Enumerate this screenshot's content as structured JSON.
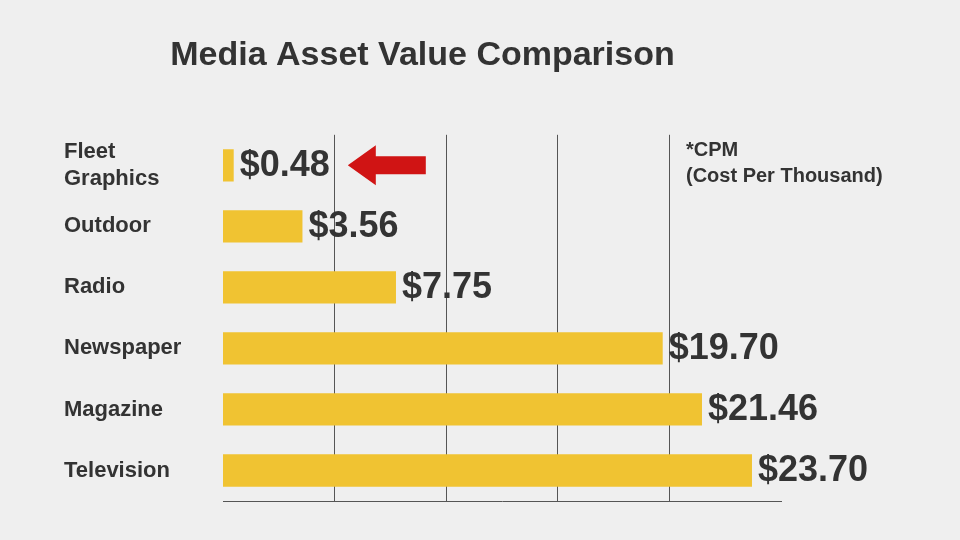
{
  "chart_data": {
    "type": "bar",
    "orientation": "horizontal",
    "title": "Media Asset Value Comparison",
    "categories": [
      "Fleet Graphics",
      "Outdoor",
      "Radio",
      "Newspaper",
      "Magazine",
      "Television"
    ],
    "values": [
      0.48,
      3.56,
      7.75,
      19.7,
      21.46,
      23.7
    ],
    "value_labels": [
      "$0.48",
      "$3.56",
      "$7.75",
      "$19.70",
      "$21.46",
      "$23.70"
    ],
    "data_labels": true,
    "color": "#f0c332",
    "xlim": [
      0,
      25
    ],
    "xticks": [
      5,
      10,
      15,
      20
    ],
    "grid": true,
    "tick_labels": "y",
    "annotations": [
      "*CPM",
      "(Cost Per Thousand)"
    ]
  }
}
